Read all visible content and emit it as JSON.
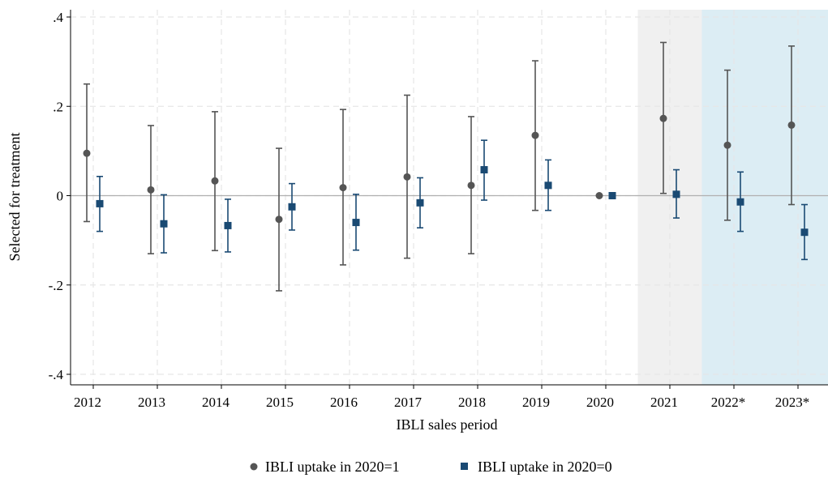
{
  "chart_data": {
    "type": "scatter",
    "xlabel": "IBLI sales period",
    "ylabel": "Selected for treatment",
    "categories": [
      "2012",
      "2013",
      "2014",
      "2015",
      "2016",
      "2017",
      "2018",
      "2019",
      "2020",
      "2021",
      "2022*",
      "2023*"
    ],
    "ylim": [
      -0.4,
      0.4
    ],
    "yticks": [
      {
        "value": 0.4,
        "label": ".4"
      },
      {
        "value": 0.2,
        "label": ".2"
      },
      {
        "value": 0,
        "label": "0"
      },
      {
        "value": -0.2,
        "label": "-.2"
      },
      {
        "value": -0.4,
        "label": "-.4"
      }
    ],
    "grid": true,
    "legend_position": "bottom",
    "shaded_periods": [
      {
        "category": "2021",
        "color": "#f0f0f0"
      },
      {
        "category": "2022*",
        "color": "#dcedf4"
      },
      {
        "category": "2023*",
        "color": "#dcedf4"
      }
    ],
    "series": [
      {
        "name": "IBLI uptake in 2020=1",
        "marker": "circle",
        "color": "#555555",
        "values": [
          0.095,
          0.013,
          0.033,
          -0.053,
          0.018,
          0.042,
          0.023,
          0.135,
          0.0,
          0.173,
          0.113,
          0.158
        ],
        "ci_low": [
          -0.058,
          -0.13,
          -0.123,
          -0.213,
          -0.155,
          -0.14,
          -0.13,
          -0.033,
          0.0,
          0.005,
          -0.055,
          -0.02
        ],
        "ci_high": [
          0.25,
          0.157,
          0.188,
          0.106,
          0.193,
          0.225,
          0.177,
          0.302,
          0.0,
          0.343,
          0.281,
          0.335
        ]
      },
      {
        "name": "IBLI uptake in 2020=0",
        "marker": "square",
        "color": "#1a4a73",
        "values": [
          -0.018,
          -0.063,
          -0.067,
          -0.025,
          -0.06,
          -0.016,
          0.058,
          0.023,
          0.0,
          0.003,
          -0.014,
          -0.082
        ],
        "ci_low": [
          -0.08,
          -0.128,
          -0.126,
          -0.077,
          -0.122,
          -0.072,
          -0.01,
          -0.033,
          0.0,
          -0.05,
          -0.08,
          -0.143
        ],
        "ci_high": [
          0.043,
          0.002,
          -0.008,
          0.027,
          0.003,
          0.04,
          0.124,
          0.08,
          0.0,
          0.058,
          0.053,
          -0.02
        ]
      }
    ]
  }
}
